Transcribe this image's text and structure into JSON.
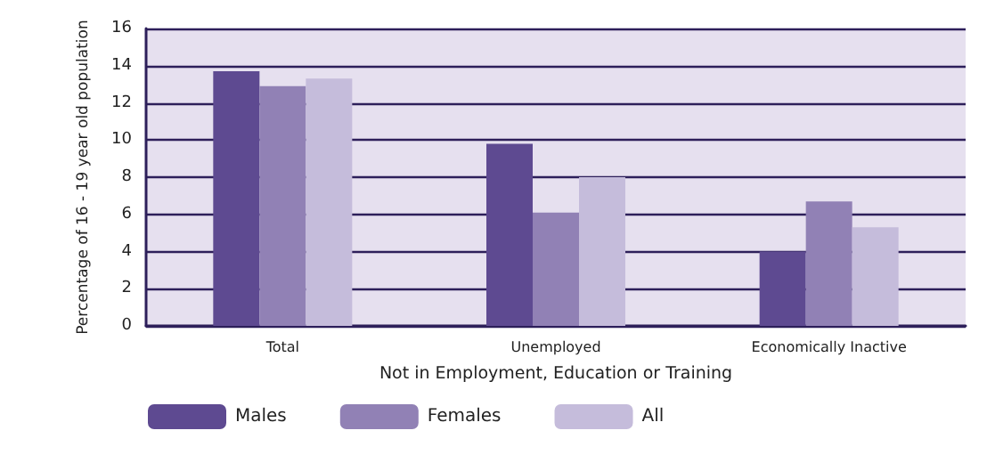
{
  "chart_data": {
    "type": "bar",
    "xlabel": "Not in Employment, Education or Training",
    "ylabel": "Percentage of 16 - 19 year old population",
    "categories": [
      "Total",
      "Unemployed",
      "Economically Inactive"
    ],
    "series": [
      {
        "name": "Males",
        "color": "#5e4a91",
        "values": [
          13.7,
          9.8,
          4.0
        ]
      },
      {
        "name": "Females",
        "color": "#9181b5",
        "values": [
          12.9,
          6.1,
          6.7
        ]
      },
      {
        "name": "All",
        "color": "#c5bcdb",
        "values": [
          13.3,
          8.0,
          5.3
        ]
      }
    ],
    "ylim": [
      0,
      16
    ],
    "yticks": [
      0,
      2,
      4,
      6,
      8,
      10,
      12,
      14,
      16
    ],
    "grid": "y",
    "legend": "bottom left"
  }
}
